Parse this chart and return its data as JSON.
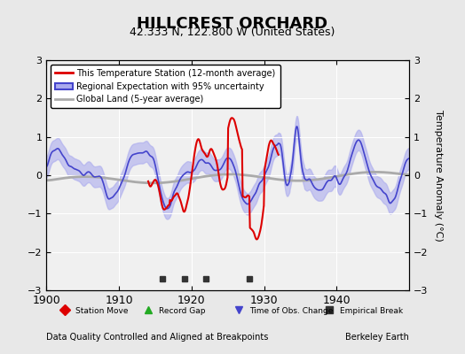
{
  "title": "HILLCREST ORCHARD",
  "subtitle": "42.333 N, 122.800 W (United States)",
  "ylabel": "Temperature Anomaly (°C)",
  "footer_left": "Data Quality Controlled and Aligned at Breakpoints",
  "footer_right": "Berkeley Earth",
  "xlim": [
    1900,
    1950
  ],
  "ylim": [
    -3,
    3
  ],
  "yticks": [
    -3,
    -2,
    -1,
    0,
    1,
    2,
    3
  ],
  "xticks": [
    1900,
    1910,
    1920,
    1930,
    1940
  ],
  "bg_color": "#e8e8e8",
  "plot_bg_color": "#f0f0f0",
  "red_color": "#dd0000",
  "blue_color": "#4444cc",
  "blue_fill_color": "#aaaaee",
  "gray_color": "#aaaaaa",
  "empirical_breaks": [
    1916,
    1919,
    1922,
    1928
  ],
  "legend_items": [
    {
      "label": "This Temperature Station (12-month average)",
      "color": "#dd0000",
      "lw": 2.0,
      "ls": "-"
    },
    {
      "label": "Regional Expectation with 95% uncertainty",
      "color": "#4444cc",
      "lw": 1.5,
      "ls": "-"
    },
    {
      "label": "Global Land (5-year average)",
      "color": "#aaaaaa",
      "lw": 2.0,
      "ls": "-"
    }
  ],
  "bottom_legend": [
    {
      "label": "Station Move",
      "marker": "D",
      "color": "#dd0000"
    },
    {
      "label": "Record Gap",
      "marker": "^",
      "color": "#22aa22"
    },
    {
      "label": "Time of Obs. Change",
      "marker": "v",
      "color": "#4444cc"
    },
    {
      "label": "Empirical Break",
      "marker": "s",
      "color": "#333333"
    }
  ]
}
